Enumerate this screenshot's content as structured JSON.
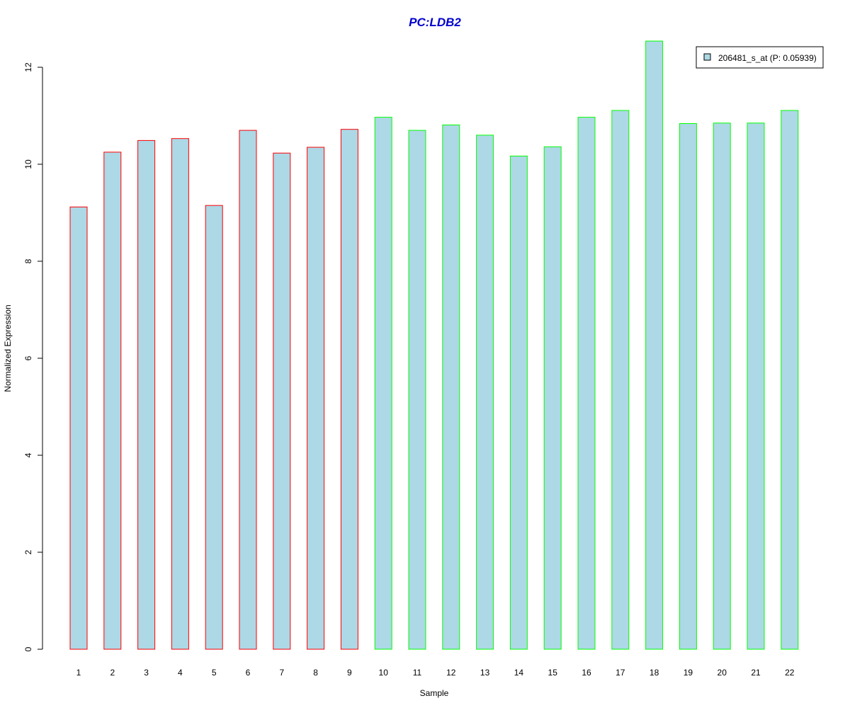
{
  "chart_data": {
    "type": "bar",
    "title": "PC:LDB2",
    "xlabel": "Sample",
    "ylabel": "Normalized Expression",
    "categories": [
      "1",
      "2",
      "3",
      "4",
      "5",
      "6",
      "7",
      "8",
      "9",
      "10",
      "11",
      "12",
      "13",
      "14",
      "15",
      "16",
      "17",
      "18",
      "19",
      "20",
      "21",
      "22"
    ],
    "series": [
      {
        "name": "206481_s_at (P: 0.05939)",
        "values": [
          9.12,
          10.25,
          10.49,
          10.53,
          9.15,
          10.7,
          10.23,
          10.35,
          10.72,
          10.97,
          10.7,
          10.81,
          10.6,
          10.17,
          10.36,
          10.97,
          11.11,
          12.54,
          10.84,
          10.85,
          10.85,
          11.11
        ]
      }
    ],
    "groups": [
      {
        "samples": [
          "1",
          "2",
          "3",
          "4",
          "5",
          "6",
          "7",
          "8",
          "9"
        ],
        "border_color": "#ff0000"
      },
      {
        "samples": [
          "10",
          "11",
          "12",
          "13",
          "14",
          "15",
          "16",
          "17",
          "18",
          "19",
          "20",
          "21",
          "22"
        ],
        "border_color": "#00ff00"
      }
    ],
    "ylim": [
      0,
      12.6
    ],
    "yticks": [
      0,
      2,
      4,
      6,
      8,
      10,
      12
    ],
    "grid": false,
    "legend_position": "top-right",
    "colors": {
      "bar_fill": "#add8e6",
      "title": "#0000cd",
      "axis": "#000000"
    }
  }
}
